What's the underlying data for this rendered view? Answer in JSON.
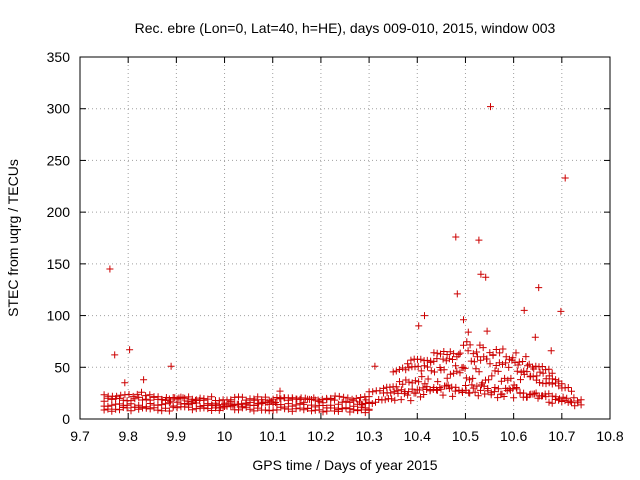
{
  "chart_data": {
    "type": "scatter",
    "title": "Rec. ebre (Lon=0, Lat=40, h=HE), days 009-010, 2015, window 003",
    "xlabel": "GPS time / Days of year 2015",
    "ylabel": "STEC from uqrg / TECUs",
    "xlim": [
      9.7,
      10.8
    ],
    "ylim": [
      0,
      350
    ],
    "x_ticks": [
      "9.7",
      "9.8",
      "9.9",
      "10",
      "10.1",
      "10.2",
      "10.3",
      "10.4",
      "10.5",
      "10.6",
      "10.7",
      "10.8"
    ],
    "y_ticks": [
      "0",
      "50",
      "100",
      "150",
      "200",
      "250",
      "300",
      "350"
    ],
    "grid": true,
    "marker": "+",
    "color": "#cc0000",
    "outliers": [
      {
        "x": 9.762,
        "y": 145
      },
      {
        "x": 9.772,
        "y": 62
      },
      {
        "x": 9.793,
        "y": 35
      },
      {
        "x": 9.803,
        "y": 67
      },
      {
        "x": 9.832,
        "y": 38
      },
      {
        "x": 9.889,
        "y": 51
      },
      {
        "x": 10.115,
        "y": 27
      },
      {
        "x": 10.312,
        "y": 51
      },
      {
        "x": 10.403,
        "y": 90
      },
      {
        "x": 10.415,
        "y": 100
      },
      {
        "x": 10.48,
        "y": 176
      },
      {
        "x": 10.483,
        "y": 121
      },
      {
        "x": 10.496,
        "y": 96
      },
      {
        "x": 10.506,
        "y": 84
      },
      {
        "x": 10.528,
        "y": 173
      },
      {
        "x": 10.532,
        "y": 140
      },
      {
        "x": 10.542,
        "y": 137
      },
      {
        "x": 10.545,
        "y": 85
      },
      {
        "x": 10.552,
        "y": 302
      },
      {
        "x": 10.622,
        "y": 105
      },
      {
        "x": 10.645,
        "y": 79
      },
      {
        "x": 10.652,
        "y": 127
      },
      {
        "x": 10.678,
        "y": 66
      },
      {
        "x": 10.698,
        "y": 104
      },
      {
        "x": 10.707,
        "y": 233
      }
    ],
    "tracks": [
      {
        "x_start": 9.75,
        "x_end": 10.3,
        "y_start": 18,
        "y_end": 15,
        "amplitude": 4,
        "points": 70
      },
      {
        "x_start": 9.75,
        "x_end": 10.3,
        "y_start": 13,
        "y_end": 10,
        "amplitude": 3,
        "points": 70
      },
      {
        "x_start": 9.75,
        "x_end": 10.3,
        "y_start": 9,
        "y_end": 8,
        "amplitude": 2,
        "points": 70
      },
      {
        "x_start": 9.75,
        "x_end": 10.0,
        "y_start": 22,
        "y_end": 12,
        "amplitude": 5,
        "points": 30
      },
      {
        "x_start": 10.0,
        "x_end": 10.3,
        "y_start": 14,
        "y_end": 20,
        "amplitude": 3,
        "points": 35
      },
      {
        "x_start": 10.28,
        "x_end": 10.74,
        "y_start": 15,
        "y_end": 14,
        "amplitude": 14,
        "points": 70
      },
      {
        "x_start": 10.3,
        "x_end": 10.74,
        "y_start": 25,
        "y_end": 18,
        "amplitude": 10,
        "points": 60
      },
      {
        "x_start": 10.33,
        "x_end": 10.72,
        "y_start": 30,
        "y_end": 28,
        "amplitude": 18,
        "points": 60
      },
      {
        "x_start": 10.35,
        "x_end": 10.7,
        "y_start": 45,
        "y_end": 35,
        "amplitude": 20,
        "points": 55
      },
      {
        "x_start": 10.38,
        "x_end": 10.68,
        "y_start": 55,
        "y_end": 45,
        "amplitude": 18,
        "points": 45
      }
    ]
  }
}
